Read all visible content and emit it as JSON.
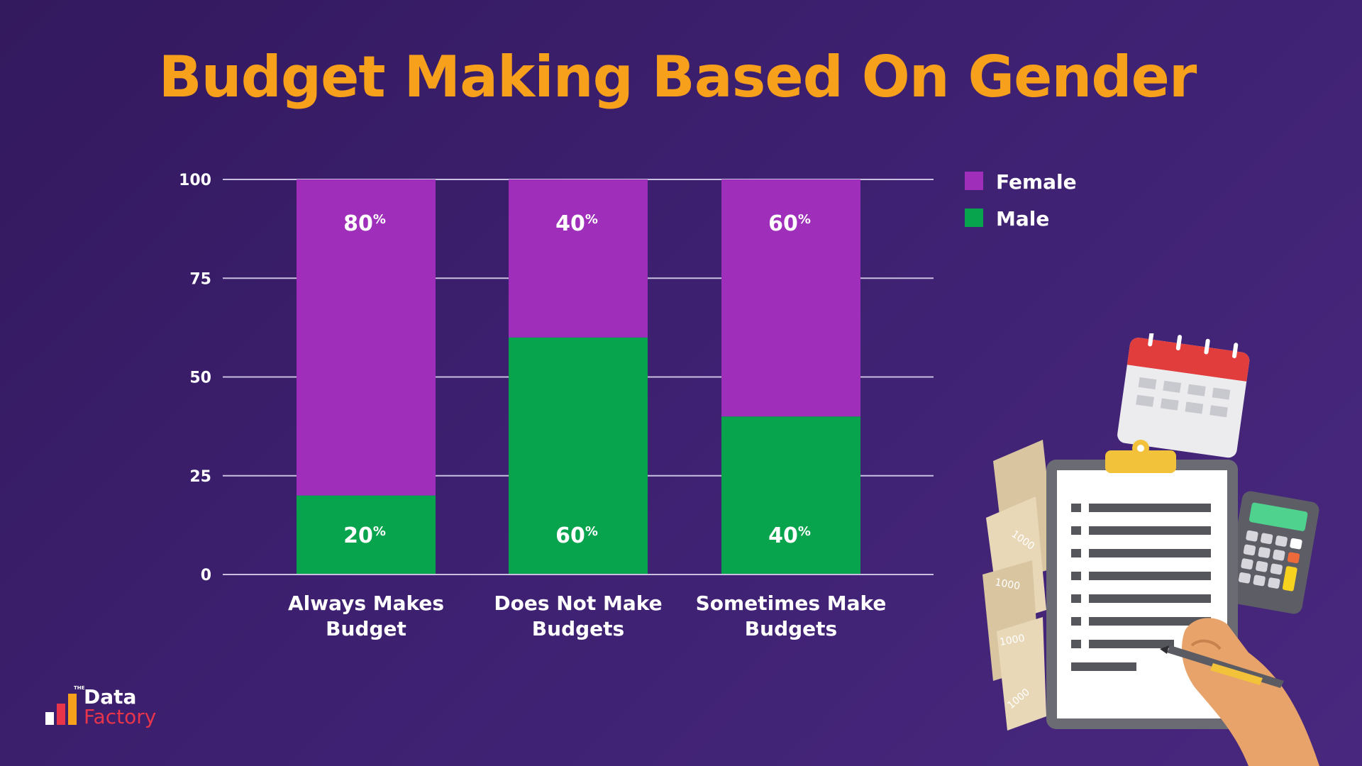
{
  "title": "Budget Making Based On Gender",
  "brand": {
    "the": "THE",
    "line1": "Data",
    "line2": "Factory"
  },
  "illustration": {
    "note_value": "1000",
    "icons": [
      "calendar-icon",
      "clipboard-icon",
      "calculator-icon",
      "banknote-icon",
      "pen-icon",
      "hand-icon"
    ]
  },
  "colors": {
    "female": "#9f2fbb",
    "male": "#08a44d",
    "title": "#f7a01b",
    "grid": "#c9bfe0"
  },
  "chart_data": {
    "type": "bar",
    "stacked": true,
    "title": "Budget Making Based On Gender",
    "categories": [
      [
        "Always Makes",
        "Budget"
      ],
      [
        "Does Not Make",
        "Budgets"
      ],
      [
        "Sometimes Make",
        "Budgets"
      ]
    ],
    "series": [
      {
        "name": "Male",
        "values": [
          20,
          60,
          40
        ],
        "labels": [
          "20",
          "60",
          "40"
        ],
        "color": "#08a44d"
      },
      {
        "name": "Female",
        "values": [
          80,
          40,
          60
        ],
        "labels": [
          "80",
          "40",
          "60"
        ],
        "color": "#9f2fbb"
      }
    ],
    "label_suffix": "%",
    "ylim": [
      0,
      100
    ],
    "yticks": [
      "0",
      "25",
      "50",
      "75",
      "100"
    ],
    "legend": {
      "placement": "top-right",
      "entries": [
        "Female",
        "Male"
      ]
    },
    "grid": true
  }
}
